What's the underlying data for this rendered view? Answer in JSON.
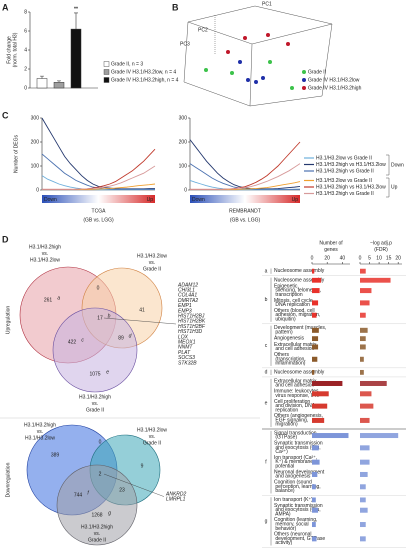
{
  "figure": {
    "panels": [
      "A",
      "B",
      "C",
      "D"
    ]
  },
  "chart_data": [
    {
      "type": "bar",
      "ylabel": [
        "Fold change",
        "(norm. total H3)"
      ],
      "ylim": [
        0,
        8
      ],
      "yticks": [
        0,
        2,
        4,
        6,
        8
      ],
      "annotation": "**",
      "series": [
        {
          "name": "Grade II, n = 3",
          "color": "#ffffff",
          "values": [
            1.0
          ],
          "errors": [
            0.25
          ]
        },
        {
          "name": "Grade IV H3.1/H3.2low, n = 4",
          "color": "#9e9e9e",
          "values": [
            0.6
          ],
          "errors": [
            0.15
          ]
        },
        {
          "name": "Grade IV H3.1/H3.2high, n = 4",
          "color": "#111111",
          "values": [
            6.2
          ],
          "errors": [
            1.7
          ]
        }
      ]
    },
    {
      "type": "line",
      "title": "TCGA",
      "xlabel": "(GB vs. LGG)",
      "ylabel": "Number of DEGs",
      "axis_ends": [
        "Down",
        "Up"
      ],
      "legend_groups": [
        "Down",
        "Up"
      ],
      "ylim": [
        0,
        300
      ],
      "yticks": [
        0,
        100,
        200,
        300
      ],
      "series": [
        {
          "name": "H3.1/H3.2low vs Grade II",
          "color": "#6fb0dc",
          "values": [
            60,
            45,
            35,
            25,
            18,
            12,
            8,
            5,
            3,
            2,
            1,
            1,
            1,
            1,
            1,
            1,
            1,
            1,
            2,
            2,
            2
          ]
        },
        {
          "name": "H3.1/H3.2high vs H3.1/H3.2low",
          "color": "#24386e",
          "values": [
            300,
            260,
            220,
            180,
            140,
            110,
            85,
            60,
            40,
            25,
            15,
            10,
            8,
            6,
            5,
            5,
            5,
            5,
            5,
            6,
            6
          ]
        },
        {
          "name": "H3.1/H3.2high vs Grade II",
          "color": "#4c72b0",
          "values": [
            150,
            130,
            110,
            90,
            70,
            55,
            40,
            30,
            20,
            12,
            8,
            5,
            4,
            3,
            3,
            3,
            3,
            3,
            3,
            3,
            3
          ]
        },
        {
          "name": "H3.1/H3.2low vs Grade II",
          "color": "#f0a030",
          "values": [
            2,
            2,
            2,
            2,
            2,
            2,
            2,
            2,
            2,
            3,
            4,
            5,
            6,
            8,
            10,
            12,
            15,
            18,
            20,
            22,
            25
          ]
        },
        {
          "name": "H3.1/H3.2high vs H3.1/H3.2low",
          "color": "#c0392b",
          "values": [
            3,
            3,
            3,
            3,
            3,
            3,
            3,
            4,
            5,
            8,
            12,
            18,
            25,
            35,
            50,
            65,
            80,
            100,
            120,
            145,
            170
          ]
        },
        {
          "name": "H3.1/H3.2high vs Grade II",
          "color": "#d79a9a",
          "values": [
            2,
            2,
            2,
            2,
            2,
            2,
            3,
            4,
            5,
            6,
            8,
            12,
            16,
            22,
            30,
            40,
            50,
            60,
            70,
            85,
            100
          ]
        }
      ]
    },
    {
      "type": "line",
      "title": "REMBRANDT",
      "xlabel": "(GB vs. LGG)",
      "axis_ends": [
        "Down",
        "Up"
      ],
      "ylim": [
        0,
        300
      ],
      "yticks": [
        0,
        100,
        200,
        300
      ],
      "series": [
        {
          "color": "#6fb0dc",
          "values": [
            40,
            32,
            25,
            18,
            12,
            8,
            5,
            3,
            2,
            1,
            1,
            1,
            1,
            1,
            1,
            1,
            1,
            2,
            2,
            3,
            4
          ]
        },
        {
          "color": "#24386e",
          "values": [
            210,
            180,
            150,
            120,
            95,
            70,
            50,
            35,
            22,
            14,
            9,
            6,
            5,
            5,
            5,
            5,
            6,
            8,
            10,
            12,
            15
          ]
        },
        {
          "color": "#4c72b0",
          "values": [
            110,
            95,
            80,
            65,
            50,
            38,
            28,
            20,
            12,
            8,
            5,
            4,
            3,
            3,
            3,
            3,
            3,
            3,
            3,
            3,
            3
          ]
        },
        {
          "color": "#f0a030",
          "values": [
            2,
            2,
            2,
            2,
            2,
            2,
            2,
            2,
            2,
            3,
            4,
            5,
            6,
            8,
            10,
            14,
            18,
            22,
            26,
            30,
            35
          ]
        },
        {
          "color": "#c0392b",
          "values": [
            3,
            3,
            3,
            3,
            3,
            3,
            3,
            4,
            6,
            9,
            14,
            22,
            32,
            45,
            60,
            80,
            100,
            125,
            150,
            175,
            200
          ]
        },
        {
          "color": "#d79a9a",
          "values": [
            2,
            2,
            2,
            2,
            2,
            2,
            3,
            4,
            5,
            7,
            10,
            14,
            20,
            28,
            36,
            46,
            56,
            68,
            80,
            95,
            110
          ]
        }
      ]
    }
  ],
  "pca": {
    "axes": [
      "PC1",
      "PC2",
      "PC3"
    ],
    "legend": [
      {
        "name": "Grade II",
        "color": "#3cc24a"
      },
      {
        "name": "Grade IV H3.1/H3.2low",
        "color": "#1f2fa8"
      },
      {
        "name": "Grade IV H3.1/H3.2high",
        "color": "#c0172a"
      }
    ]
  },
  "venn": {
    "side_labels": [
      "Upregulation",
      "Downregulation"
    ],
    "up": {
      "sets": [
        [
          "H3.1/H3.2high",
          "vs.",
          "H3.1/H3.2low"
        ],
        [
          "H3.1/H3.2low",
          "vs.",
          "Grade II"
        ],
        [
          "H3.1/H3.2high",
          "vs.",
          "Grade II"
        ]
      ],
      "regions": [
        {
          "count": 261,
          "mark": "a"
        },
        {
          "count": 0
        },
        {
          "count": 41
        },
        {
          "count": 17,
          "mark": "b"
        },
        {
          "count": 422,
          "mark": "c"
        },
        {
          "count": 89,
          "mark": "d"
        },
        {
          "count": 1075,
          "mark": "e"
        }
      ],
      "genes": [
        "ADAM12",
        "CHI3L1",
        "COL4A1",
        "DMRTA2",
        "EMP1",
        "EMP3",
        "HIST1H2BJ",
        "HIST1H2BK",
        "HIST1H2BF",
        "HIST1H3D",
        "LOX",
        "MEOX1",
        "NNMT",
        "PLAT",
        "SOCS3",
        "STK32B"
      ]
    },
    "down": {
      "sets": [
        [
          "H3.1/H3.2high",
          "vs.",
          "H3.1/H3.2low"
        ],
        [
          "H3.1/H3.2low",
          "vs.",
          "Grade II"
        ],
        [
          "H3.1/H3.2high",
          "vs.",
          "Grade II"
        ]
      ],
      "regions": [
        {
          "count": 389
        },
        {
          "count": 0
        },
        {
          "count": 9
        },
        {
          "count": 2
        },
        {
          "count": 744,
          "mark": "f"
        },
        {
          "count": 23
        },
        {
          "count": 1268,
          "mark": "g"
        }
      ],
      "genes": [
        "ANKRD2",
        "LMRPL1"
      ]
    }
  },
  "go_table": {
    "genes_axis": {
      "title": [
        "Number of",
        "genes"
      ],
      "xlim": [
        0,
        50
      ],
      "xticks": [
        0,
        20,
        40
      ]
    },
    "fdr_axis": {
      "title": [
        "−log adj.p",
        "(FDR)"
      ],
      "xlim": [
        0,
        22
      ],
      "xticks": [
        0,
        5,
        10,
        15,
        20
      ]
    },
    "groups": [
      {
        "label": "a",
        "rows": [
          {
            "term": "Nucleosome assembly",
            "genes": 3,
            "fdr": 3,
            "color": "#e8322b"
          }
        ]
      },
      {
        "label": "b",
        "rows": [
          {
            "term": "Nucleosome assembly",
            "genes": 12,
            "fdr": 16,
            "color": "#e8322b"
          },
          {
            "term": "Epigenetic, silencing, telomeres, transcription",
            "genes": 10,
            "fdr": 6,
            "color": "#e8322b"
          },
          {
            "term": "Mitosis, cell cycle, DNA replication",
            "genes": 8,
            "fdr": 5,
            "color": "#e8322b"
          },
          {
            "term": "Others (blood, cell adhesion, migration, ubiquitin)",
            "genes": 6,
            "fdr": 3,
            "color": "#e8322b"
          }
        ]
      },
      {
        "label": "c",
        "rows": [
          {
            "term": "Development (muscles, pattern)",
            "genes": 9,
            "fdr": 4,
            "color": "#8b5a2b"
          },
          {
            "term": "Angiogenesis",
            "genes": 8,
            "fdr": 3,
            "color": "#8b5a2b"
          },
          {
            "term": "Extracellular matrix and cell adhesion",
            "genes": 8,
            "fdr": 3,
            "color": "#8b5a2b"
          },
          {
            "term": "Others (transcription, inflammation)",
            "genes": 7,
            "fdr": 2,
            "color": "#8b5a2b"
          }
        ]
      },
      {
        "label": "d",
        "rows": [
          {
            "term": "Nucleosome assembly",
            "genes": 3,
            "fdr": 2,
            "color": "#8b5a2b"
          }
        ]
      },
      {
        "label": "e",
        "rows": [
          {
            "term": "Extracellular matrix and cell adhesion",
            "genes": 40,
            "fdr": 14,
            "color": "#9b2226"
          },
          {
            "term": "Immune: leukocytes, virus response, IFN",
            "genes": 22,
            "fdr": 6,
            "color": "#d63a2f"
          },
          {
            "term": "Cell proliferation and division, DNA replication",
            "genes": 20,
            "fdr": 7,
            "color": "#d63a2f"
          },
          {
            "term": "Others (angiogenesis, EGF signaling, migration)",
            "genes": 16,
            "fdr": 5,
            "color": "#d63a2f"
          }
        ]
      },
      {
        "label": "f",
        "rows": [
          {
            "term": "Signal transduction (GTPase)",
            "genes": 48,
            "fdr": 20,
            "color": "#7d95d9"
          },
          {
            "term": "Synaptic transmission and exocytosis (Glu, Ca²⁺)",
            "genes": 9,
            "fdr": 5,
            "color": "#7d95d9"
          },
          {
            "term": "Ion transport (Ca²⁺, K⁺) & membrane potential",
            "genes": 10,
            "fdr": 5,
            "color": "#7d95d9"
          },
          {
            "term": "Neuronal development and axogenesis",
            "genes": 7,
            "fdr": 4,
            "color": "#7d95d9"
          },
          {
            "term": "Cognition (sound perception, learning, balance)",
            "genes": 5,
            "fdr": 3,
            "color": "#7d95d9"
          }
        ]
      },
      {
        "label": "g",
        "rows": [
          {
            "term": "Ion transport (K⁺)",
            "genes": 5,
            "fdr": 3,
            "color": "#7d95d9"
          },
          {
            "term": "Synaptic transmission and exocytosis (Glu, AMPA)",
            "genes": 8,
            "fdr": 4,
            "color": "#7d95d9"
          },
          {
            "term": "Cognition (learning, memory, social behavior)",
            "genes": 5,
            "fdr": 3,
            "color": "#7d95d9"
          },
          {
            "term": "Others (neuronal development, GTPase activity)",
            "genes": 6,
            "fdr": 3,
            "color": "#7d95d9"
          }
        ]
      }
    ]
  }
}
